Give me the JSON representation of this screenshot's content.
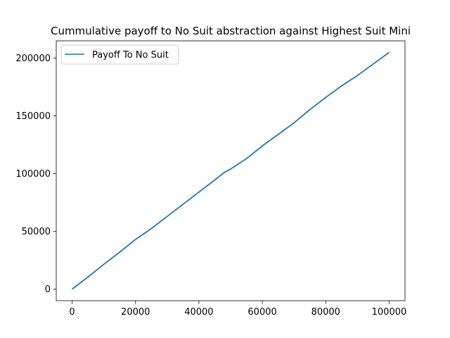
{
  "chart_data": {
    "type": "line",
    "title": "Cummulative payoff to No Suit abstraction against Highest Suit Mini",
    "xlabel": "",
    "ylabel": "",
    "xlim": [
      -5000,
      105000
    ],
    "ylim": [
      -10000,
      215000
    ],
    "x_ticks": [
      0,
      20000,
      40000,
      60000,
      80000,
      100000
    ],
    "x_tick_labels": [
      "0",
      "20000",
      "40000",
      "60000",
      "80000",
      "100000"
    ],
    "y_ticks": [
      0,
      50000,
      100000,
      150000,
      200000
    ],
    "y_tick_labels": [
      "0",
      "50000",
      "100000",
      "150000",
      "200000"
    ],
    "grid": false,
    "legend_position": "upper-left",
    "series": [
      {
        "name": "Payoff To No Suit",
        "color": "#1f77b4",
        "x": [
          0,
          5000,
          10000,
          15000,
          20000,
          25000,
          30000,
          35000,
          40000,
          45000,
          48000,
          50000,
          55000,
          60000,
          65000,
          70000,
          75000,
          80000,
          85000,
          90000,
          95000,
          100000
        ],
        "y": [
          0,
          10500,
          21500,
          32000,
          43000,
          52500,
          63000,
          73500,
          84000,
          94500,
          101000,
          104000,
          113000,
          124000,
          134000,
          144000,
          155500,
          166000,
          176000,
          185000,
          195000,
          205000
        ]
      }
    ]
  }
}
